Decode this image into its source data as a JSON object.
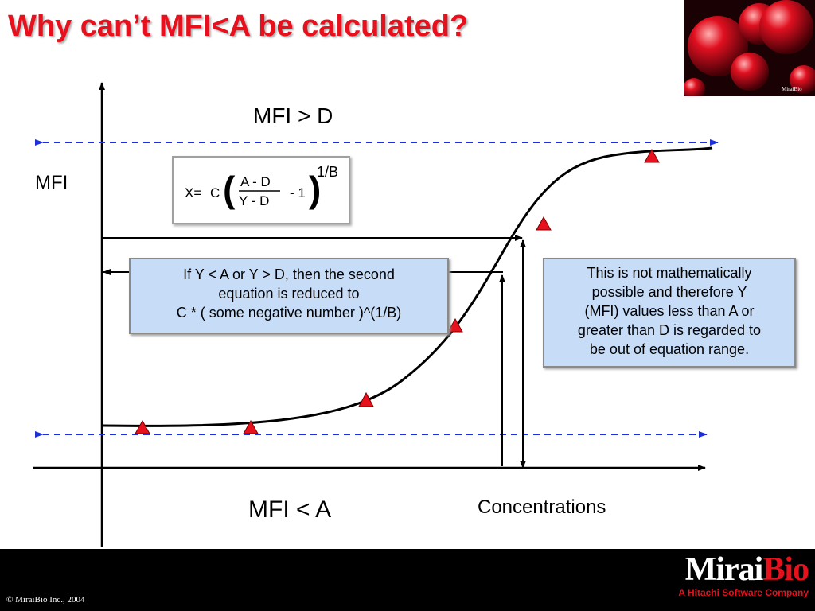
{
  "title": "Why can’t MFI<A be calculated?",
  "labels": {
    "mfi_gt_d": "MFI > D",
    "mfi_lt_a": "MFI < A",
    "y_axis": "MFI",
    "x_axis": "Concentrations"
  },
  "formula": {
    "lhs": "X=",
    "c": "C",
    "numerator": "A - D",
    "denominator": "Y - D",
    "minus_one": "- 1",
    "exponent": "1/B"
  },
  "left_note": {
    "line1": "If Y < A or Y > D, then the second",
    "line2": "equation is reduced to",
    "line3": "C * ( some negative number )^(1/B)"
  },
  "right_note": {
    "line1": "This is not mathematically",
    "line2": "possible and therefore Y",
    "line3": "(MFI) values less than A or",
    "line4": "greater than D is regarded to",
    "line5": "be out of equation range."
  },
  "footer": {
    "copyright": "© MiraiBio Inc., 2004",
    "brand_mirai": "Mirai",
    "brand_bio": "Bio",
    "tagline": "A Hitachi Software Company"
  },
  "corner_logo_text": "MiraiBio",
  "colors": {
    "title_red": "#e8101c",
    "note_fill": "#c7dcf7",
    "dashed_line": "#1c2fd8",
    "marker_red": "#e8101c"
  }
}
